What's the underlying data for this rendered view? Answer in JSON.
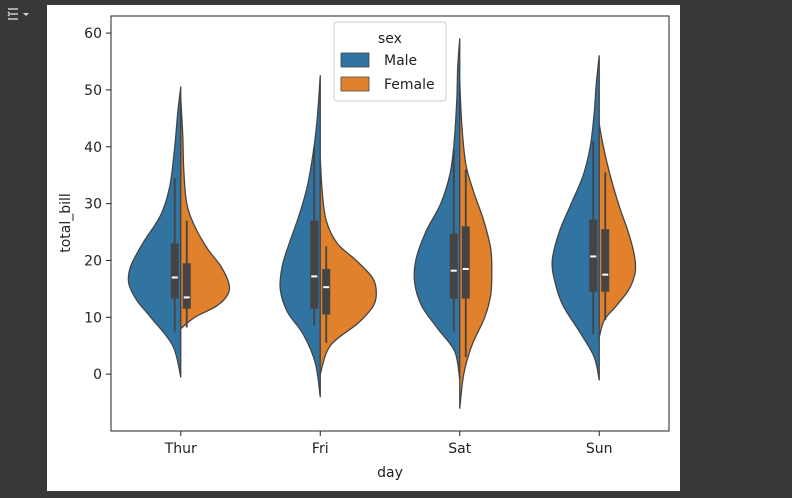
{
  "toolbar": {
    "icon": "output-menu-icon"
  },
  "chart_data": {
    "type": "violin",
    "split": true,
    "xlabel": "day",
    "ylabel": "total_bill",
    "categories": [
      "Thur",
      "Fri",
      "Sat",
      "Sun"
    ],
    "ylim": [
      -10,
      63
    ],
    "yticks": [
      0,
      10,
      20,
      30,
      40,
      50,
      60
    ],
    "legend": {
      "title": "sex",
      "placement": "top-center"
    },
    "grid": false,
    "series": [
      {
        "name": "Male",
        "color": "#3274a1"
      },
      {
        "name": "Female",
        "color": "#e1812c"
      }
    ],
    "violins": [
      {
        "day": "Thur",
        "Male": {
          "min": -0.5,
          "max": 50.5,
          "q1": 13.3,
          "median": 17.0,
          "q3": 23.0,
          "whisker_low": 7.5,
          "whisker_high": 34.5,
          "profile": [
            [
              -0.5,
              0
            ],
            [
              5,
              8
            ],
            [
              10,
              30
            ],
            [
              13,
              44
            ],
            [
              16,
              52
            ],
            [
              19,
              50
            ],
            [
              23,
              38
            ],
            [
              28,
              20
            ],
            [
              33,
              11
            ],
            [
              40,
              6
            ],
            [
              46,
              3
            ],
            [
              50.5,
              0
            ]
          ]
        },
        "Female": {
          "min": 8.0,
          "max": 48.5,
          "q1": 11.5,
          "median": 13.5,
          "q3": 19.5,
          "whisker_low": 8.2,
          "whisker_high": 27.0,
          "profile": [
            [
              8,
              0
            ],
            [
              10,
              14
            ],
            [
              12,
              36
            ],
            [
              14,
              47
            ],
            [
              16,
              48
            ],
            [
              19,
              40
            ],
            [
              22,
              27
            ],
            [
              26,
              14
            ],
            [
              30,
              6
            ],
            [
              36,
              3
            ],
            [
              42,
              2
            ],
            [
              48.5,
              0
            ]
          ]
        }
      },
      {
        "day": "Fri",
        "Male": {
          "min": -4.0,
          "max": 52.5,
          "q1": 11.5,
          "median": 17.2,
          "q3": 27.0,
          "whisker_low": 8.5,
          "whisker_high": 40.0,
          "profile": [
            [
              -4,
              0
            ],
            [
              2,
              5
            ],
            [
              7,
              17
            ],
            [
              11,
              33
            ],
            [
              15,
              40
            ],
            [
              19,
              38
            ],
            [
              23,
              31
            ],
            [
              28,
              21
            ],
            [
              33,
              13
            ],
            [
              39,
              7
            ],
            [
              45,
              3
            ],
            [
              52.5,
              0
            ]
          ]
        },
        "Female": {
          "min": 0.0,
          "max": 38.0,
          "q1": 10.5,
          "median": 15.3,
          "q3": 18.5,
          "whisker_low": 5.5,
          "whisker_high": 22.5,
          "profile": [
            [
              0,
              0
            ],
            [
              5,
              10
            ],
            [
              9,
              38
            ],
            [
              12,
              53
            ],
            [
              14.5,
              56
            ],
            [
              17,
              52
            ],
            [
              20,
              36
            ],
            [
              23,
              17
            ],
            [
              27,
              6
            ],
            [
              32,
              2
            ],
            [
              38,
              0
            ]
          ]
        }
      },
      {
        "day": "Sat",
        "Male": {
          "min": -1.0,
          "max": 59.0,
          "q1": 13.3,
          "median": 18.2,
          "q3": 24.7,
          "whisker_low": 7.5,
          "whisker_high": 39.5,
          "profile": [
            [
              -1,
              0
            ],
            [
              4,
              5
            ],
            [
              8,
              22
            ],
            [
              12,
              38
            ],
            [
              16,
              45
            ],
            [
              20,
              44
            ],
            [
              25,
              34
            ],
            [
              30,
              19
            ],
            [
              35,
              10
            ],
            [
              40,
              6
            ],
            [
              48,
              3
            ],
            [
              54,
              2
            ],
            [
              59,
              0
            ]
          ]
        },
        "Female": {
          "min": -6.0,
          "max": 51.5,
          "q1": 13.3,
          "median": 18.5,
          "q3": 26.0,
          "whisker_low": 3.0,
          "whisker_high": 36.0,
          "profile": [
            [
              -6,
              0
            ],
            [
              0,
              4
            ],
            [
              5,
              12
            ],
            [
              10,
              25
            ],
            [
              14,
              31
            ],
            [
              18,
              32
            ],
            [
              22,
              31
            ],
            [
              27,
              24
            ],
            [
              32,
              14
            ],
            [
              37,
              6
            ],
            [
              44,
              2
            ],
            [
              51.5,
              0
            ]
          ]
        }
      },
      {
        "day": "Sun",
        "Male": {
          "min": -1.0,
          "max": 56.0,
          "q1": 14.5,
          "median": 20.7,
          "q3": 27.2,
          "whisker_low": 7.0,
          "whisker_high": 41.0,
          "profile": [
            [
              -1,
              0
            ],
            [
              3,
              5
            ],
            [
              7,
              18
            ],
            [
              12,
              36
            ],
            [
              16,
              44
            ],
            [
              20,
              47
            ],
            [
              25,
              40
            ],
            [
              30,
              28
            ],
            [
              35,
              16
            ],
            [
              40,
              9
            ],
            [
              46,
              5
            ],
            [
              51,
              3
            ],
            [
              56,
              0
            ]
          ]
        },
        "Female": {
          "min": 6.5,
          "max": 44.0,
          "q1": 14.5,
          "median": 17.5,
          "q3": 25.5,
          "whisker_low": 9.5,
          "whisker_high": 35.5,
          "profile": [
            [
              6.5,
              0
            ],
            [
              9.5,
              5
            ],
            [
              12,
              17
            ],
            [
              15,
              30
            ],
            [
              18,
              36
            ],
            [
              21,
              35
            ],
            [
              25,
              29
            ],
            [
              29,
              21
            ],
            [
              33,
              14
            ],
            [
              37,
              8
            ],
            [
              41,
              3
            ],
            [
              44,
              0
            ]
          ]
        }
      }
    ]
  }
}
